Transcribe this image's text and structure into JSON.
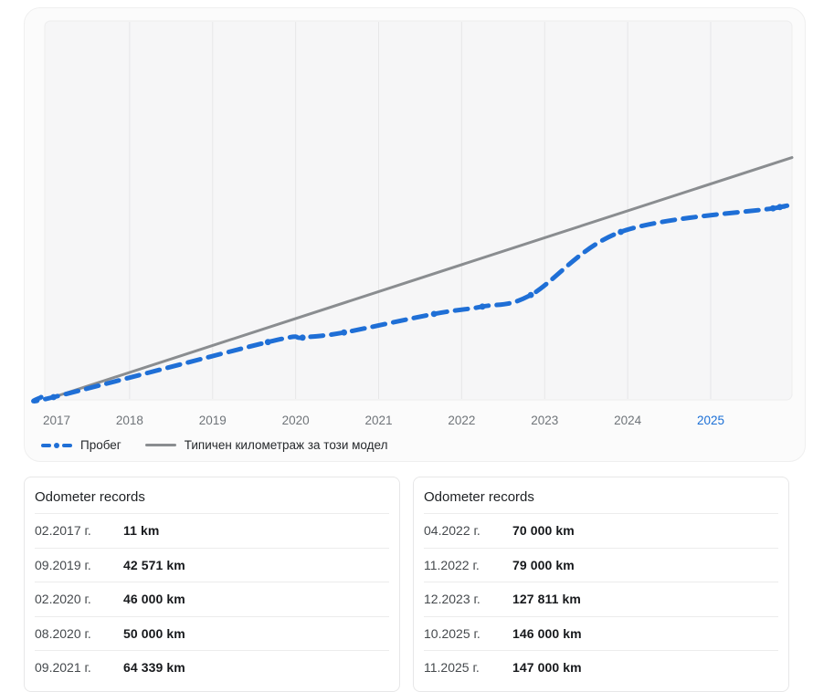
{
  "colors": {
    "accent_blue": "#1f6fd6",
    "typical_gray": "#8a8d90",
    "plot_bg": "#f6f6f7",
    "plot_border": "#ededee",
    "gridline": "#e7e7e8",
    "tick_text": "#6f7479",
    "tick_active": "#1b6fd6"
  },
  "chart_data": {
    "type": "line",
    "title": "",
    "xlabel": "",
    "ylabel": "",
    "ylim": [
      0,
      290000
    ],
    "grid": "vertical-only",
    "legend_position": "bottom-left",
    "x_axis": {
      "ticks": [
        "2017",
        "2018",
        "2019",
        "2020",
        "2021",
        "2022",
        "2023",
        "2024",
        "2025"
      ],
      "highlighted_tick": "2025"
    },
    "series": [
      {
        "name": "Пробег",
        "style": "dashed-with-dot-markers",
        "color": "#1f6fd6",
        "points": [
          {
            "date": "02.2017",
            "km": 11
          },
          {
            "date": "09.2019",
            "km": 42571
          },
          {
            "date": "02.2020",
            "km": 46000
          },
          {
            "date": "08.2020",
            "km": 50000
          },
          {
            "date": "09.2021",
            "km": 64339
          },
          {
            "date": "04.2022",
            "km": 70000
          },
          {
            "date": "11.2022",
            "km": 79000
          },
          {
            "date": "12.2023",
            "km": 127811
          },
          {
            "date": "10.2025",
            "km": 146000
          },
          {
            "date": "11.2025",
            "km": 147000
          }
        ]
      },
      {
        "name": "Типичен километраж за този модел",
        "style": "solid",
        "color": "#8a8d90",
        "points": [
          {
            "date": "02.2017",
            "km": 0
          },
          {
            "date": "12.2025",
            "km": 184000
          }
        ]
      }
    ]
  },
  "tables": {
    "left": {
      "title": "Odometer records",
      "rows": [
        {
          "date": "02.2017 г.",
          "value": "11 km"
        },
        {
          "date": "09.2019 г.",
          "value": "42 571 km"
        },
        {
          "date": "02.2020 г.",
          "value": "46 000 km"
        },
        {
          "date": "08.2020 г.",
          "value": "50 000 km"
        },
        {
          "date": "09.2021 г.",
          "value": "64 339 km"
        }
      ]
    },
    "right": {
      "title": "Odometer records",
      "rows": [
        {
          "date": "04.2022 г.",
          "value": "70 000 km"
        },
        {
          "date": "11.2022 г.",
          "value": "79 000 km"
        },
        {
          "date": "12.2023 г.",
          "value": "127 811 km"
        },
        {
          "date": "10.2025 г.",
          "value": "146 000 km"
        },
        {
          "date": "11.2025 г.",
          "value": "147 000 km"
        }
      ]
    }
  }
}
